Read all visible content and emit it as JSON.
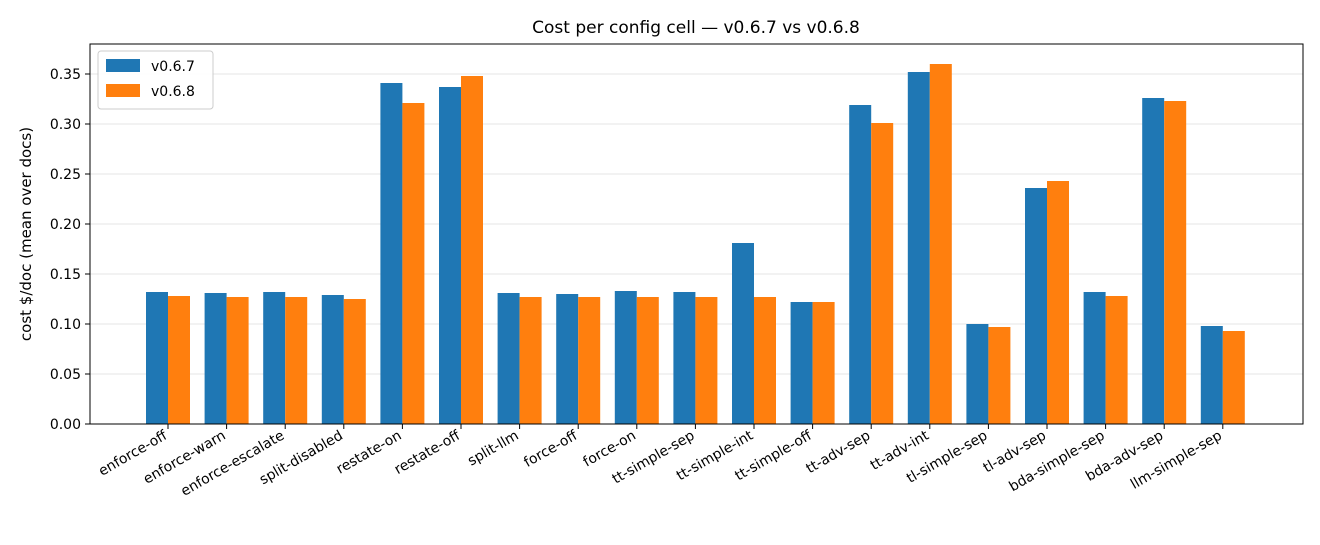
{
  "chart_data": {
    "type": "bar",
    "title": "Cost per config cell — v0.6.7 vs v0.6.8",
    "xlabel": "",
    "ylabel": "cost $/doc (mean over docs)",
    "ylim": [
      0,
      0.38
    ],
    "yticks": [
      "0.00",
      "0.05",
      "0.10",
      "0.15",
      "0.20",
      "0.25",
      "0.30",
      "0.35"
    ],
    "grid": "y",
    "legend_position": "top-left",
    "categories": [
      "enforce-off",
      "enforce-warn",
      "enforce-escalate",
      "split-disabled",
      "restate-on",
      "restate-off",
      "split-llm",
      "force-off",
      "force-on",
      "tt-simple-sep",
      "tt-simple-int",
      "tt-simple-off",
      "tt-adv-sep",
      "tt-adv-int",
      "tl-simple-sep",
      "tl-adv-sep",
      "bda-simple-sep",
      "bda-adv-sep",
      "llm-simple-sep"
    ],
    "series": [
      {
        "name": "v0.6.7",
        "color": "#1f77b4",
        "values": [
          0.132,
          0.131,
          0.132,
          0.129,
          0.341,
          0.337,
          0.131,
          0.13,
          0.133,
          0.132,
          0.181,
          0.122,
          0.319,
          0.352,
          0.1,
          0.236,
          0.132,
          0.326,
          0.098
        ]
      },
      {
        "name": "v0.6.8",
        "color": "#ff7f0e",
        "values": [
          0.128,
          0.127,
          0.127,
          0.125,
          0.321,
          0.348,
          0.127,
          0.127,
          0.127,
          0.127,
          0.127,
          0.122,
          0.301,
          0.36,
          0.097,
          0.243,
          0.128,
          0.323,
          0.093
        ]
      }
    ]
  }
}
